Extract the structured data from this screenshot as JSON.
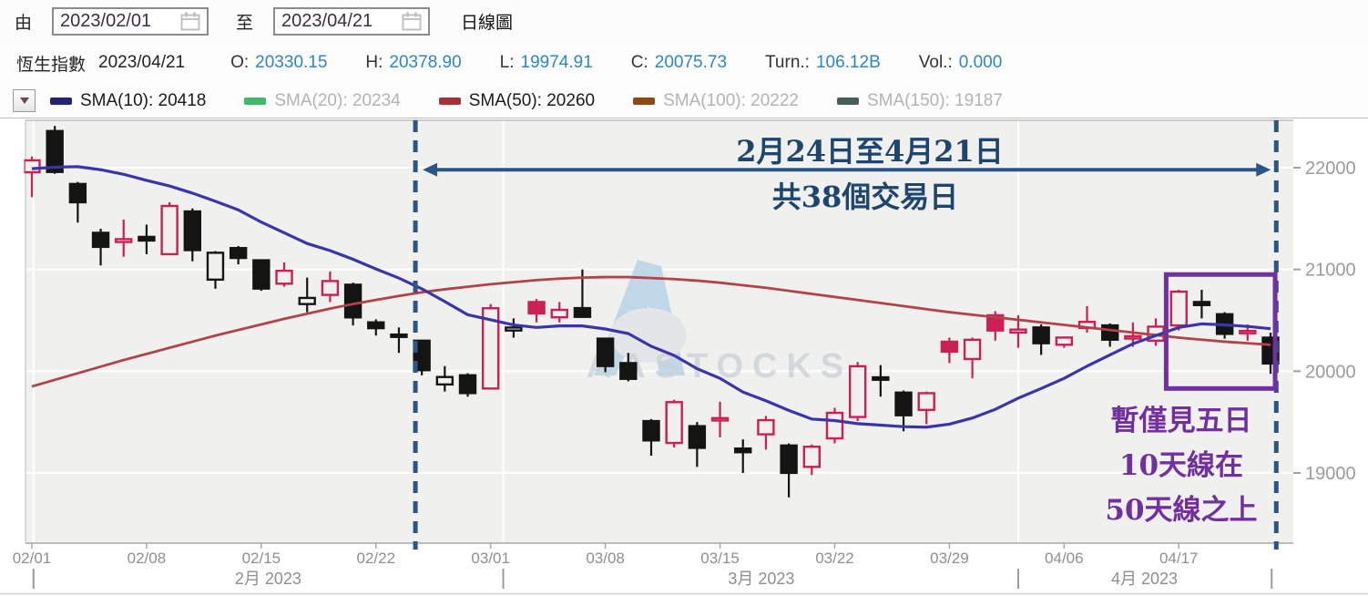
{
  "toolbar": {
    "from_label": "由",
    "to_label": "至",
    "from_date": "2023/02/01",
    "to_date": "2023/04/21",
    "chart_type": "日線圖"
  },
  "quote_bar": {
    "name": "恆生指數",
    "date": "2023/04/21",
    "fields": [
      {
        "label": "O:",
        "value": "20330.15"
      },
      {
        "label": "H:",
        "value": "20378.90"
      },
      {
        "label": "L:",
        "value": "19974.91"
      },
      {
        "label": "C:",
        "value": "20075.73"
      },
      {
        "label": "Turn.:",
        "value": "106.12B"
      },
      {
        "label": "Vol.:",
        "value": "0.000"
      }
    ]
  },
  "legend": {
    "items": [
      {
        "label": "SMA(10):",
        "value": "20418",
        "swatch": "#23237d",
        "muted": false
      },
      {
        "label": "SMA(20):",
        "value": "20234",
        "swatch": "#3cb96a",
        "muted": true
      },
      {
        "label": "SMA(50):",
        "value": "20260",
        "swatch": "#a63238",
        "muted": false
      },
      {
        "label": "SMA(100):",
        "value": "20222",
        "swatch": "#8a4a12",
        "muted": true
      },
      {
        "label": "SMA(150):",
        "value": "19187",
        "swatch": "#44605a",
        "muted": true
      }
    ]
  },
  "annotations": {
    "range_line1": "2月24日至4月21日",
    "range_line2": "共38個交易日",
    "purple_line1": "暫僅見五日",
    "purple_line2": "10天線在",
    "purple_line3": "50天線之上",
    "blue": "#2b5585",
    "blue_text": "#1d456f",
    "purple": "#7030a0"
  },
  "watermark": {
    "text": "AASTOCKS"
  },
  "chart_data": {
    "type": "candlestick",
    "title": "恆生指數 daily candlestick chart 2023/02/01 - 2023/04/21 with SMA(10) and SMA(50)",
    "y_ticks": [
      22000,
      21000,
      20000,
      19000
    ],
    "y_range_px_scale": "price 22000 at top gridline, ~8.95 points per px",
    "week_ticks": [
      {
        "label": "02/01",
        "day": 0
      },
      {
        "label": "02/08",
        "day": 5
      },
      {
        "label": "02/15",
        "day": 10
      },
      {
        "label": "02/22",
        "day": 15
      },
      {
        "label": "03/01",
        "day": 20
      },
      {
        "label": "03/08",
        "day": 25
      },
      {
        "label": "03/15",
        "day": 30
      },
      {
        "label": "03/22",
        "day": 35
      },
      {
        "label": "03/29",
        "day": 40
      },
      {
        "label": "04/06",
        "day": 45
      },
      {
        "label": "04/17",
        "day": 50
      }
    ],
    "month_labels": [
      {
        "label": "2月 2023",
        "center_day": 10.3
      },
      {
        "label": "3月 2023",
        "center_day": 31.8
      },
      {
        "label": "4月 2023",
        "center_day": 48.5
      }
    ],
    "month_separator_days": [
      0.07,
      20.55,
      43,
      54.05
    ],
    "x_gridline_days": [
      0.07,
      20.55,
      43
    ],
    "dashed_line_days": [
      16.72,
      54.25
    ],
    "arrow_price": 21980,
    "highlight_box": {
      "day_from": 49.45,
      "day_to": 54.2,
      "price_top": 20950,
      "price_bottom": 19830
    },
    "colors": {
      "up": "#cc1f54",
      "down": "#141414",
      "sma10": "#3a35ad",
      "sma50": "#b2434a"
    },
    "dates": [
      "02/01",
      "02/02",
      "02/03",
      "02/06",
      "02/07",
      "02/08",
      "02/09",
      "02/10",
      "02/13",
      "02/14",
      "02/15",
      "02/16",
      "02/17",
      "02/20",
      "02/21",
      "02/22",
      "02/23",
      "02/24",
      "02/27",
      "02/28",
      "03/01",
      "03/02",
      "03/03",
      "03/06",
      "03/07",
      "03/08",
      "03/09",
      "03/10",
      "03/13",
      "03/14",
      "03/15",
      "03/16",
      "03/17",
      "03/20",
      "03/21",
      "03/22",
      "03/23",
      "03/24",
      "03/27",
      "03/28",
      "03/29",
      "03/30",
      "03/31",
      "04/03",
      "04/04",
      "04/06",
      "04/11",
      "04/12",
      "04/13",
      "04/14",
      "04/17",
      "04/18",
      "04/19",
      "04/20",
      "04/21"
    ],
    "ohlc": [
      [
        21955,
        22110,
        21710,
        22072
      ],
      [
        22360,
        22410,
        21940,
        21958
      ],
      [
        21840,
        21860,
        21460,
        21660
      ],
      [
        21360,
        21400,
        21040,
        21222
      ],
      [
        21270,
        21490,
        21125,
        21298
      ],
      [
        21320,
        21440,
        21150,
        21284
      ],
      [
        21150,
        21660,
        21140,
        21624
      ],
      [
        21570,
        21600,
        21080,
        21190
      ],
      [
        20900,
        21180,
        20810,
        21164
      ],
      [
        21210,
        21230,
        21050,
        21113
      ],
      [
        21090,
        21100,
        20790,
        20812
      ],
      [
        20860,
        21070,
        20830,
        20987
      ],
      [
        20660,
        20920,
        20580,
        20720
      ],
      [
        20750,
        20980,
        20680,
        20886
      ],
      [
        20850,
        20870,
        20450,
        20529
      ],
      [
        20480,
        20510,
        20350,
        20423
      ],
      [
        20360,
        20430,
        20180,
        20351
      ],
      [
        20300,
        20310,
        19960,
        20010
      ],
      [
        19870,
        20050,
        19800,
        19943
      ],
      [
        19960,
        19980,
        19750,
        19785
      ],
      [
        19830,
        20660,
        19820,
        20619
      ],
      [
        20400,
        20520,
        20330,
        20429
      ],
      [
        20680,
        20710,
        20480,
        20568
      ],
      [
        20530,
        20680,
        20480,
        20603
      ],
      [
        20620,
        21000,
        20550,
        20534
      ],
      [
        20320,
        20330,
        19990,
        20051
      ],
      [
        20080,
        20180,
        19900,
        19925
      ],
      [
        19510,
        19530,
        19170,
        19320
      ],
      [
        19295,
        19720,
        19250,
        19696
      ],
      [
        19460,
        19500,
        19060,
        19247
      ],
      [
        19520,
        19700,
        19350,
        19539
      ],
      [
        19240,
        19330,
        19000,
        19204
      ],
      [
        19380,
        19560,
        19230,
        19519
      ],
      [
        19270,
        19290,
        18760,
        19001
      ],
      [
        19060,
        19280,
        18980,
        19258
      ],
      [
        19340,
        19640,
        19290,
        19591
      ],
      [
        19550,
        20090,
        19510,
        20049
      ],
      [
        19940,
        20060,
        19750,
        19916
      ],
      [
        19790,
        19810,
        19410,
        19567
      ],
      [
        19620,
        19800,
        19480,
        19784
      ],
      [
        20290,
        20330,
        20080,
        20192
      ],
      [
        20120,
        20330,
        19930,
        20309
      ],
      [
        20550,
        20590,
        20300,
        20400
      ],
      [
        20380,
        20550,
        20230,
        20409
      ],
      [
        20430,
        20460,
        20160,
        20275
      ],
      [
        20260,
        20340,
        20230,
        20331
      ],
      [
        20425,
        20640,
        20380,
        20485
      ],
      [
        20450,
        20470,
        20240,
        20310
      ],
      [
        20330,
        20480,
        20240,
        20344
      ],
      [
        20300,
        20520,
        20250,
        20438
      ],
      [
        20450,
        20800,
        20400,
        20782
      ],
      [
        20680,
        20800,
        20520,
        20650
      ],
      [
        20560,
        20580,
        20320,
        20367
      ],
      [
        20380,
        20460,
        20300,
        20396
      ],
      [
        20330,
        20379,
        19975,
        20076
      ]
    ],
    "sma10": [
      21990,
      22005,
      22010,
      21980,
      21935,
      21875,
      21820,
      21750,
      21670,
      21585,
      21465,
      21360,
      21255,
      21185,
      21100,
      21005,
      20915,
      20810,
      20685,
      20555,
      20505,
      20455,
      20430,
      20445,
      20445,
      20415,
      20370,
      20245,
      20155,
      20025,
      19930,
      19795,
      19710,
      19615,
      19530,
      19515,
      19485,
      19470,
      19455,
      19450,
      19480,
      19540,
      19625,
      19735,
      19830,
      19930,
      20050,
      20160,
      20270,
      20350,
      20430,
      20465,
      20455,
      20440,
      20418
    ],
    "sma50": [
      19850,
      19915,
      19980,
      20045,
      20110,
      20170,
      20230,
      20290,
      20350,
      20405,
      20460,
      20515,
      20565,
      20615,
      20660,
      20700,
      20740,
      20775,
      20805,
      20830,
      20855,
      20875,
      20895,
      20910,
      20920,
      20925,
      20925,
      20915,
      20905,
      20890,
      20870,
      20845,
      20820,
      20790,
      20760,
      20730,
      20700,
      20670,
      20640,
      20610,
      20580,
      20555,
      20530,
      20505,
      20480,
      20455,
      20430,
      20405,
      20380,
      20355,
      20330,
      20310,
      20290,
      20275,
      20260
    ]
  }
}
